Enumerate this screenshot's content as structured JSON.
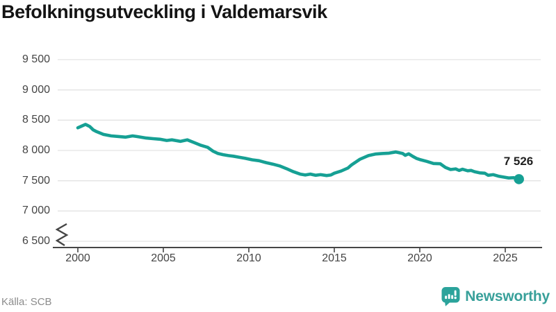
{
  "header": {
    "title": "Befolkningsutveckling i Valdemarsvik"
  },
  "chart_data": {
    "type": "line",
    "title": "Befolkningsutveckling i Valdemarsvik",
    "xlabel": "",
    "ylabel": "",
    "grid": "horizontal",
    "legend": "none",
    "axis_break": true,
    "ylim": [
      6500,
      9500
    ],
    "xlim": [
      1998.9,
      2027.1
    ],
    "y_ticks": [
      6500,
      7000,
      7500,
      8000,
      8500,
      9000,
      9500
    ],
    "y_tick_labels": [
      "6 500",
      "7 000",
      "7 500",
      "8 000",
      "8 500",
      "9 000",
      "9 500"
    ],
    "x_ticks": [
      2000,
      2005,
      2010,
      2015,
      2020,
      2025
    ],
    "x_tick_labels": [
      "2000",
      "2005",
      "2010",
      "2015",
      "2020",
      "2025"
    ],
    "series": [
      {
        "name": "Befolkning i Valdemarsvik",
        "x": [
          2000.0,
          2000.2,
          2000.45,
          2000.7,
          2000.9,
          2001.1,
          2001.5,
          2001.95,
          2002.4,
          2002.8,
          2003.2,
          2003.45,
          2004.0,
          2004.4,
          2004.8,
          2005.2,
          2005.5,
          2006.0,
          2006.4,
          2006.8,
          2007.2,
          2007.6,
          2007.9,
          2008.2,
          2008.5,
          2008.8,
          2009.1,
          2009.4,
          2009.8,
          2010.2,
          2010.6,
          2011.0,
          2011.4,
          2011.8,
          2012.2,
          2012.6,
          2013.0,
          2013.3,
          2013.6,
          2013.9,
          2014.2,
          2014.55,
          2014.8,
          2015.0,
          2015.4,
          2015.8,
          2016.0,
          2016.5,
          2017.0,
          2017.4,
          2017.8,
          2018.2,
          2018.6,
          2019.0,
          2019.15,
          2019.35,
          2019.6,
          2019.8,
          2020.0,
          2020.4,
          2020.8,
          2021.2,
          2021.5,
          2021.8,
          2022.1,
          2022.3,
          2022.5,
          2022.8,
          2023.0,
          2023.2,
          2023.5,
          2023.8,
          2024.0,
          2024.3,
          2024.6,
          2024.9,
          2025.2,
          2025.5,
          2025.8
        ],
        "y": [
          8375,
          8400,
          8430,
          8395,
          8340,
          8310,
          8265,
          8240,
          8230,
          8220,
          8240,
          8230,
          8205,
          8195,
          8185,
          8165,
          8175,
          8150,
          8175,
          8130,
          8085,
          8050,
          7990,
          7950,
          7930,
          7915,
          7905,
          7890,
          7870,
          7845,
          7830,
          7800,
          7775,
          7745,
          7700,
          7650,
          7610,
          7595,
          7610,
          7590,
          7600,
          7585,
          7595,
          7625,
          7660,
          7710,
          7760,
          7855,
          7915,
          7940,
          7950,
          7955,
          7975,
          7950,
          7920,
          7945,
          7900,
          7870,
          7850,
          7820,
          7785,
          7780,
          7720,
          7685,
          7695,
          7670,
          7690,
          7665,
          7670,
          7650,
          7630,
          7625,
          7590,
          7600,
          7575,
          7560,
          7545,
          7550,
          7526
        ]
      }
    ],
    "end_point": {
      "x": 2025.8,
      "y": 7526,
      "label": "7 526"
    },
    "colors": {
      "line": "#16a094",
      "grid": "#e3e3e3",
      "axis": "#454545",
      "tick_text": "#444444",
      "title_text": "#141414"
    }
  },
  "footer": {
    "source": "Källa: SCB",
    "brand": "Newsworthy",
    "brand_color": "#38a09a",
    "brand_icon": "newsworthy-speech-bubble-bar-chart",
    "brand_icon_color": "#2ba39b"
  }
}
